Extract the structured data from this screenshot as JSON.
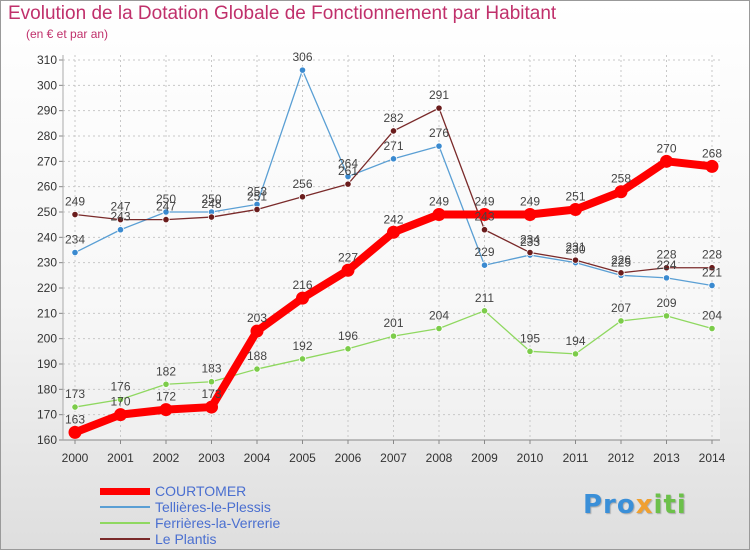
{
  "title": "Evolution de la Dotation Globale de Fonctionnement par Habitant",
  "subtitle": "(en € et par an)",
  "logo": {
    "p1": "Pro",
    "p2": "x",
    "p3": "iti"
  },
  "chart_data": {
    "type": "line",
    "title": "Evolution de la Dotation Globale de Fonctionnement par Habitant",
    "subtitle": "(en € et par an)",
    "xlabel": "",
    "ylabel": "",
    "ylim": [
      160,
      310
    ],
    "yticks": [
      160,
      170,
      180,
      190,
      200,
      210,
      220,
      230,
      240,
      250,
      260,
      270,
      280,
      290,
      300,
      310
    ],
    "grid": true,
    "legend": "bottom-left",
    "x": [
      "2000",
      "2001",
      "2002",
      "2003",
      "2004",
      "2005",
      "2006",
      "2007",
      "2008",
      "2009",
      "2010",
      "2011",
      "2012",
      "2013",
      "2014"
    ],
    "series": [
      {
        "name": "COURTOMER",
        "color": "#ff0000",
        "values": [
          163,
          170,
          172,
          173,
          203,
          216,
          227,
          242,
          249,
          249,
          249,
          251,
          258,
          270,
          268
        ],
        "labels": [
          "163",
          "170",
          "172",
          "173",
          "203",
          "216",
          "227",
          "242",
          "249",
          "249",
          "249",
          "251",
          "258",
          "270",
          "268"
        ]
      },
      {
        "name": "Tellières-le-Plessis",
        "color": "#5a9fd4",
        "values": [
          234,
          243,
          250,
          250,
          253,
          306,
          264,
          271,
          276,
          229,
          233,
          230,
          225,
          224,
          221
        ],
        "labels": [
          "234",
          "243",
          "250",
          "250",
          "253",
          "306",
          "264",
          "271",
          "276",
          "229",
          "233",
          "230",
          "225",
          "224",
          "221"
        ]
      },
      {
        "name": "Ferrières-la-Verrerie",
        "color": "#8fd860",
        "values": [
          173,
          176,
          182,
          183,
          188,
          192,
          196,
          201,
          204,
          211,
          195,
          194,
          207,
          209,
          204
        ],
        "labels": [
          "173",
          "176",
          "182",
          "183",
          "188",
          "192",
          "196",
          "201",
          "204",
          "211",
          "195",
          "194",
          "207",
          "209",
          "204"
        ]
      },
      {
        "name": "Le Plantis",
        "color": "#7a2a2a",
        "values": [
          249,
          247,
          247,
          248,
          251,
          256,
          261,
          282,
          291,
          243,
          234,
          231,
          226,
          228,
          228
        ],
        "labels": [
          "249",
          "247",
          "247",
          "248",
          "251",
          "256",
          "261",
          "282",
          "291",
          "243",
          "234",
          "231",
          "226",
          "228",
          "228"
        ]
      }
    ]
  }
}
